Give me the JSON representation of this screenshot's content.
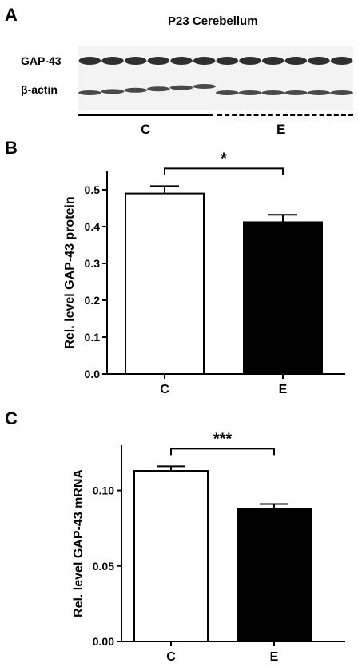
{
  "panel_a": {
    "letter": "A",
    "title": "P23 Cerebellum",
    "row_labels": [
      "GAP-43",
      "β-actin"
    ],
    "groups": [
      "C",
      "E"
    ],
    "lanes_per_group": [
      6,
      6
    ]
  },
  "panel_b": {
    "letter": "B"
  },
  "panel_c": {
    "letter": "C"
  },
  "chart_data": [
    {
      "type": "bar",
      "categories": [
        "C",
        "E"
      ],
      "values": [
        0.49,
        0.412
      ],
      "errors": [
        0.02,
        0.02
      ],
      "colors": [
        "#ffffff",
        "#000000"
      ],
      "ylabel": "Rel. level GAP-43 protein",
      "ylim": [
        0,
        0.55
      ],
      "yticks": [
        "0.0",
        "0.1",
        "0.2",
        "0.3",
        "0.4",
        "0.5"
      ],
      "significance": "*"
    },
    {
      "type": "bar",
      "categories": [
        "C",
        "E"
      ],
      "values": [
        0.113,
        0.088
      ],
      "errors": [
        0.003,
        0.003
      ],
      "colors": [
        "#ffffff",
        "#000000"
      ],
      "ylabel": "Rel. level GAP-43 mRNA",
      "ylim": [
        0,
        0.13
      ],
      "yticks": [
        "0.00",
        "0.05",
        "0.10"
      ],
      "significance": "***"
    }
  ]
}
